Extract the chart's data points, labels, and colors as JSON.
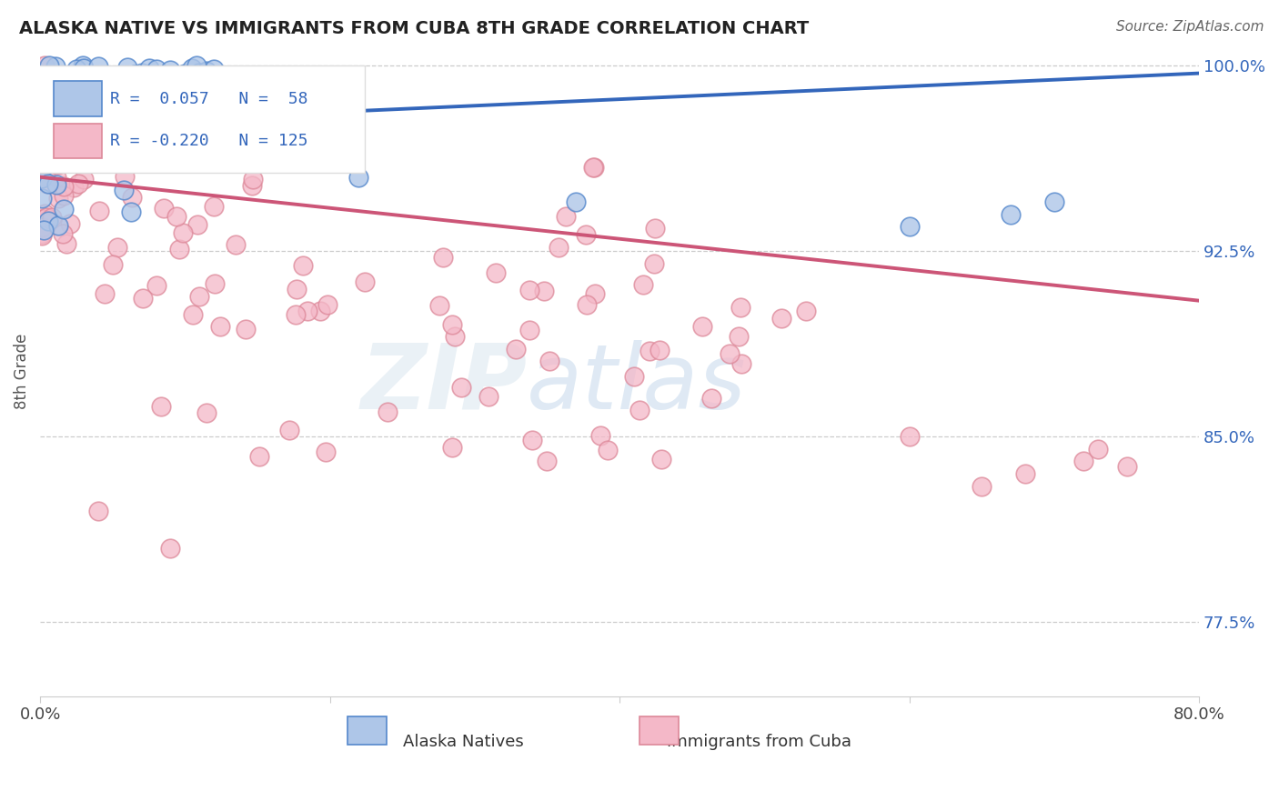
{
  "title": "ALASKA NATIVE VS IMMIGRANTS FROM CUBA 8TH GRADE CORRELATION CHART",
  "source_text": "Source: ZipAtlas.com",
  "ylabel": "8th Grade",
  "xlim": [
    0.0,
    0.8
  ],
  "ylim": [
    0.745,
    1.008
  ],
  "xticks": [
    0.0,
    0.2,
    0.4,
    0.6,
    0.8
  ],
  "xtick_labels": [
    "0.0%",
    "",
    "",
    "",
    "80.0%"
  ],
  "yticks": [
    0.775,
    0.85,
    0.925,
    1.0
  ],
  "ytick_labels": [
    "77.5%",
    "85.0%",
    "92.5%",
    "100.0%"
  ],
  "blue_R": 0.057,
  "blue_N": 58,
  "pink_R": -0.22,
  "pink_N": 125,
  "blue_fill_color": "#aec6e8",
  "pink_fill_color": "#f4b8c8",
  "blue_edge_color": "#5588cc",
  "pink_edge_color": "#dd8899",
  "blue_line_color": "#3366bb",
  "pink_line_color": "#cc5577",
  "legend_blue_label": "Alaska Natives",
  "legend_pink_label": "Immigrants from Cuba",
  "blue_trend_x0": 0.0,
  "blue_trend_y0": 0.976,
  "blue_trend_x1": 0.8,
  "blue_trend_y1": 0.997,
  "pink_trend_x0": 0.0,
  "pink_trend_y0": 0.955,
  "pink_trend_x1": 0.8,
  "pink_trend_y1": 0.905
}
